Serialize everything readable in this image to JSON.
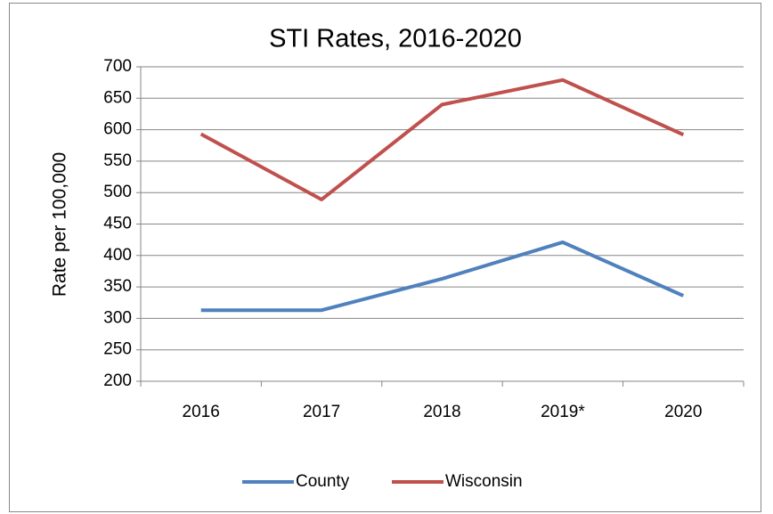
{
  "chart_data": {
    "type": "line",
    "title": "STI Rates, 2016-2020",
    "y_label": "Rate per 100,000",
    "categories": [
      "2016",
      "2017",
      "2018",
      "2019*",
      "2020"
    ],
    "series": [
      {
        "name": "County",
        "color": "#4f81bd",
        "values": [
          313,
          313,
          363,
          421,
          336
        ]
      },
      {
        "name": "Wisconsin",
        "color": "#c0504d",
        "values": [
          593,
          489,
          640,
          679,
          592
        ]
      }
    ],
    "ylim": [
      200,
      700
    ],
    "yticks": [
      200,
      250,
      300,
      350,
      400,
      450,
      500,
      550,
      600,
      650,
      700
    ],
    "grid": true,
    "legend": "bottom"
  }
}
